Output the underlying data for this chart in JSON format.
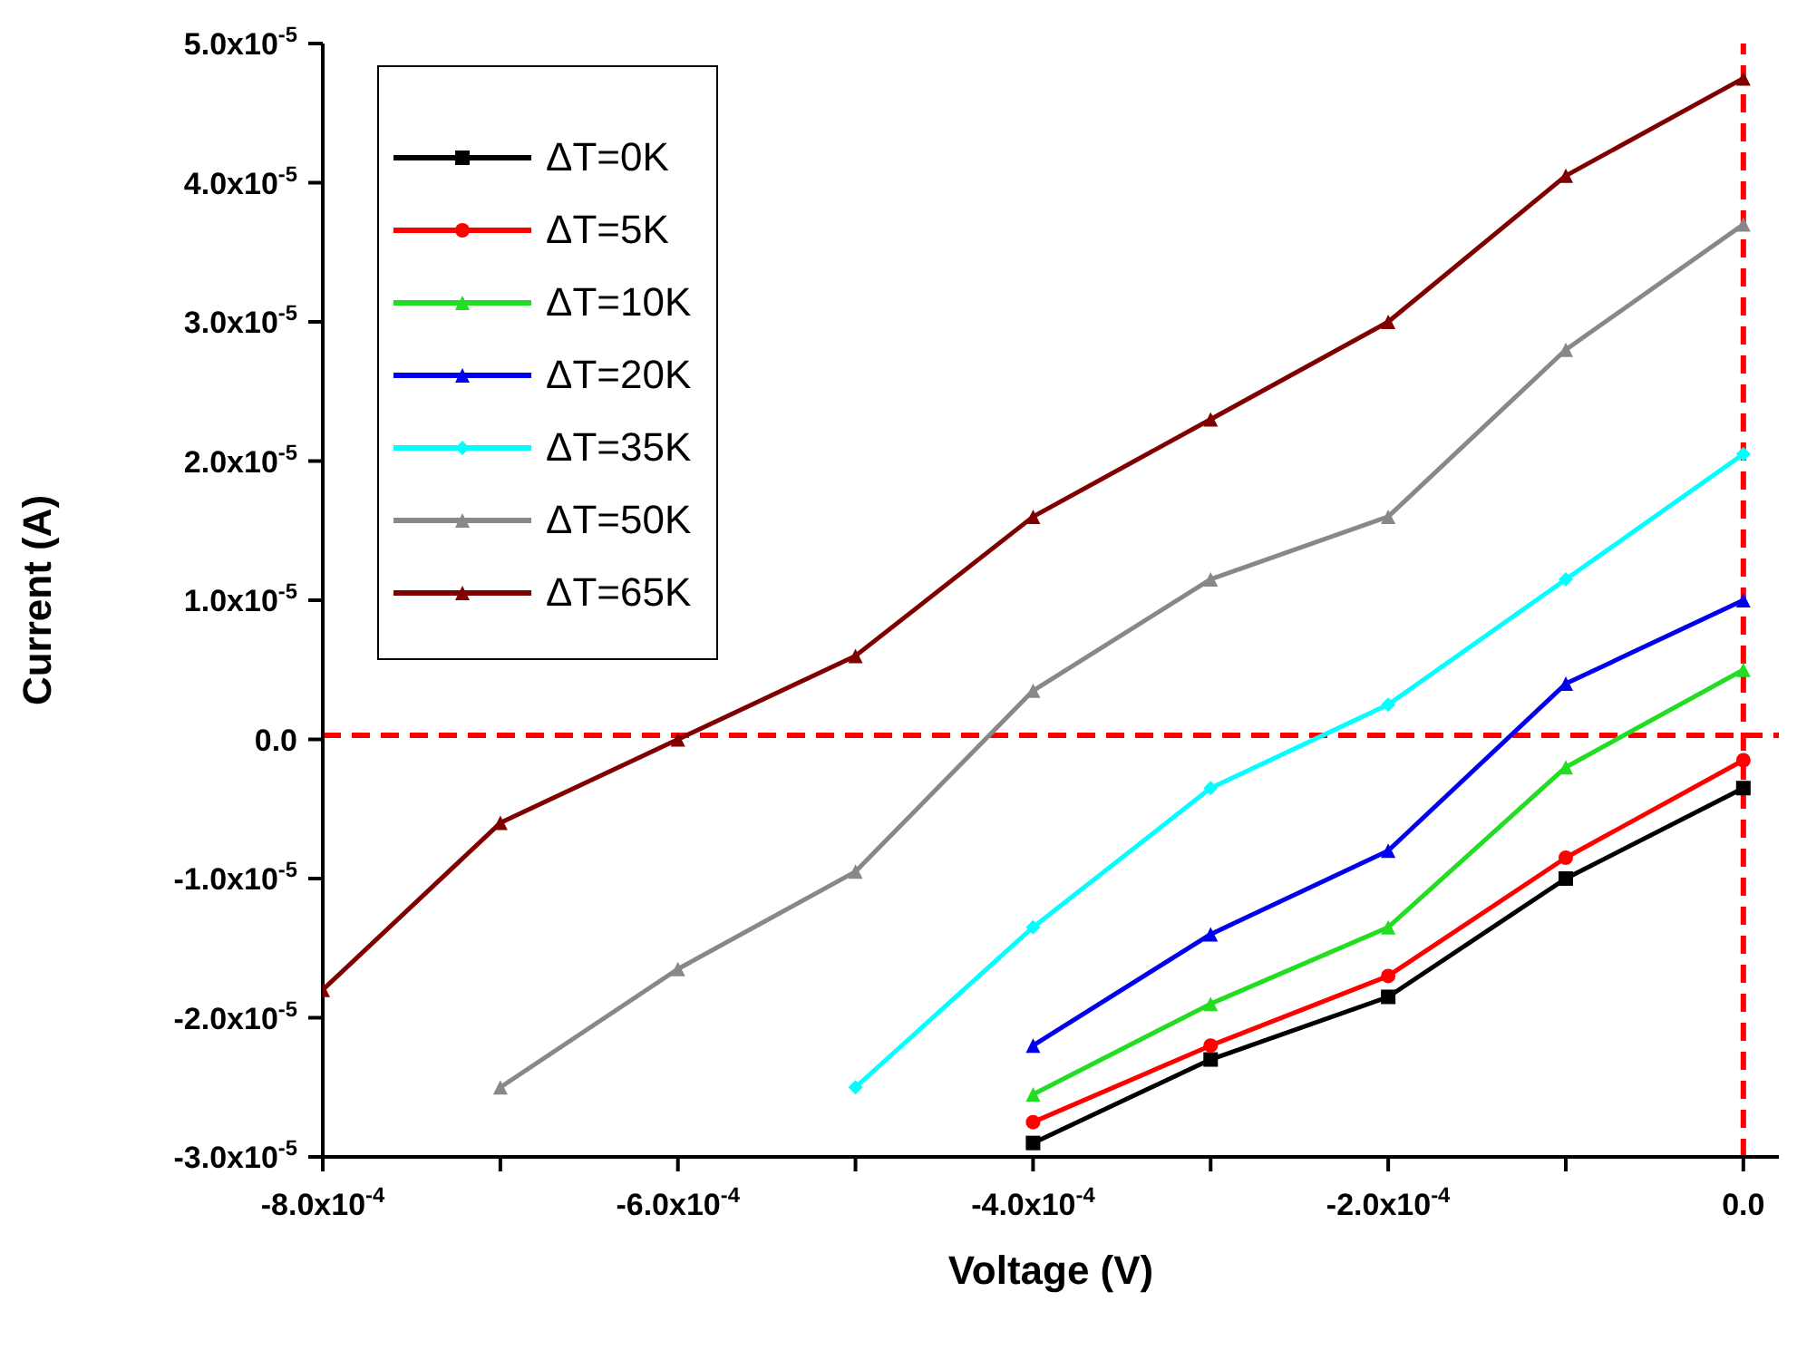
{
  "chart_data": {
    "type": "line",
    "xlabel": "Voltage (V)",
    "ylabel": "Current (A)",
    "x": [
      -0.0008,
      -0.0007,
      -0.0006,
      -0.0005,
      -0.0004,
      -0.0003,
      -0.0002,
      -0.0001,
      0
    ],
    "series": [
      {
        "name": "ΔT=0K",
        "color": "#000000",
        "marker": "square",
        "values": [
          null,
          null,
          null,
          null,
          -2.9e-05,
          -2.3e-05,
          -1.85e-05,
          -1e-05,
          -3.5e-06
        ]
      },
      {
        "name": "ΔT=5K",
        "color": "#ff0000",
        "marker": "circle",
        "values": [
          null,
          null,
          null,
          null,
          -2.75e-05,
          -2.2e-05,
          -1.7e-05,
          -8.5e-06,
          -1.5e-06
        ]
      },
      {
        "name": "ΔT=10K",
        "color": "#22dd22",
        "marker": "triangle",
        "values": [
          null,
          null,
          null,
          null,
          -2.55e-05,
          -1.9e-05,
          -1.35e-05,
          -2e-06,
          5e-06
        ]
      },
      {
        "name": "ΔT=20K",
        "color": "#0000ee",
        "marker": "triangle",
        "values": [
          null,
          null,
          null,
          null,
          -2.2e-05,
          -1.4e-05,
          -8e-06,
          4e-06,
          1e-05
        ]
      },
      {
        "name": "ΔT=35K",
        "color": "#00ffff",
        "marker": "diamond",
        "values": [
          null,
          null,
          null,
          -2.5e-05,
          -1.35e-05,
          -3.5e-06,
          2.5e-06,
          1.15e-05,
          2.05e-05
        ]
      },
      {
        "name": "ΔT=50K",
        "color": "#888888",
        "marker": "triangle",
        "values": [
          null,
          -2.5e-05,
          -1.65e-05,
          -9.5e-06,
          3.5e-06,
          1.15e-05,
          1.6e-05,
          2.8e-05,
          3.7e-05
        ]
      },
      {
        "name": "ΔT=65K",
        "color": "#800000",
        "marker": "triangle",
        "values": [
          -1.8e-05,
          -6e-06,
          0.0,
          6e-06,
          1.6e-05,
          2.3e-05,
          3e-05,
          4.05e-05,
          4.75e-05
        ]
      }
    ],
    "xlim": [
      -0.0008,
      2e-05
    ],
    "xticks": [
      {
        "value": -0.0008,
        "label": "-8.0x10$^{-4}$"
      },
      {
        "value": -0.0007,
        "label": null
      },
      {
        "value": -0.0006,
        "label": "-6.0x10$^{-4}$"
      },
      {
        "value": -0.0005,
        "label": null
      },
      {
        "value": -0.0004,
        "label": "-4.0x10$^{-4}$"
      },
      {
        "value": -0.0003,
        "label": null
      },
      {
        "value": -0.0002,
        "label": "-2.0x10$^{-4}$"
      },
      {
        "value": -0.0001,
        "label": null
      },
      {
        "value": 0,
        "label": "0.0"
      }
    ],
    "ylim": [
      -3e-05,
      5e-05
    ],
    "yticks": [
      {
        "value": -3e-05,
        "label": "-3.0x10$^{-5}$"
      },
      {
        "value": -2e-05,
        "label": "-2.0x10$^{-5}$"
      },
      {
        "value": -1e-05,
        "label": "-1.0x10$^{-5}$"
      },
      {
        "value": 0,
        "label": "0.0"
      },
      {
        "value": 1e-05,
        "label": "1.0x10$^{-5}$"
      },
      {
        "value": 2e-05,
        "label": "2.0x10$^{-5}$"
      },
      {
        "value": 3e-05,
        "label": "3.0x10$^{-5}$"
      },
      {
        "value": 4e-05,
        "label": "4.0x10$^{-5}$"
      },
      {
        "value": 5e-05,
        "label": "5.0x10$^{-5}$"
      }
    ],
    "ref_lines": [
      {
        "axis": "y",
        "value": 3e-07,
        "color": "#ff0000",
        "line_style": "dashed"
      },
      {
        "axis": "x",
        "value": 0,
        "color": "#ff0000",
        "line_style": "dashed"
      }
    ],
    "grid": false,
    "legend": "top left",
    "line_style": "solid"
  }
}
